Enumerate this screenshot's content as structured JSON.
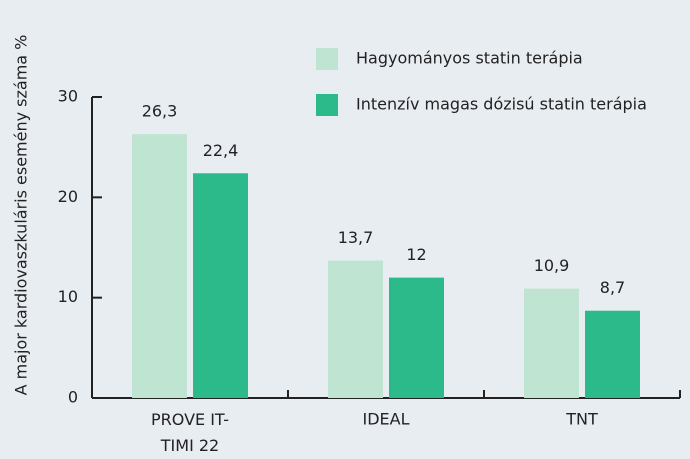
{
  "chart_data": {
    "type": "bar",
    "y_label": "A major kardiovaszkuláris esemény száma %",
    "categories": [
      "PROVE IT-TIMI 22",
      "IDEAL",
      "TNT"
    ],
    "series": [
      {
        "name": "Hagyományos statin terápia",
        "color": "#bfe5d2",
        "values": [
          26.3,
          13.7,
          10.9
        ],
        "value_labels": [
          "26,3",
          "13,7",
          "10,9"
        ]
      },
      {
        "name": "Intenzív magas dózisú statin terápia",
        "color": "#2dba8a",
        "values": [
          22.4,
          12,
          8.7
        ],
        "value_labels": [
          "22,4",
          "12",
          "8,7"
        ]
      }
    ],
    "ylim": [
      0,
      30
    ],
    "yticks": [
      0,
      10,
      20,
      30
    ]
  }
}
